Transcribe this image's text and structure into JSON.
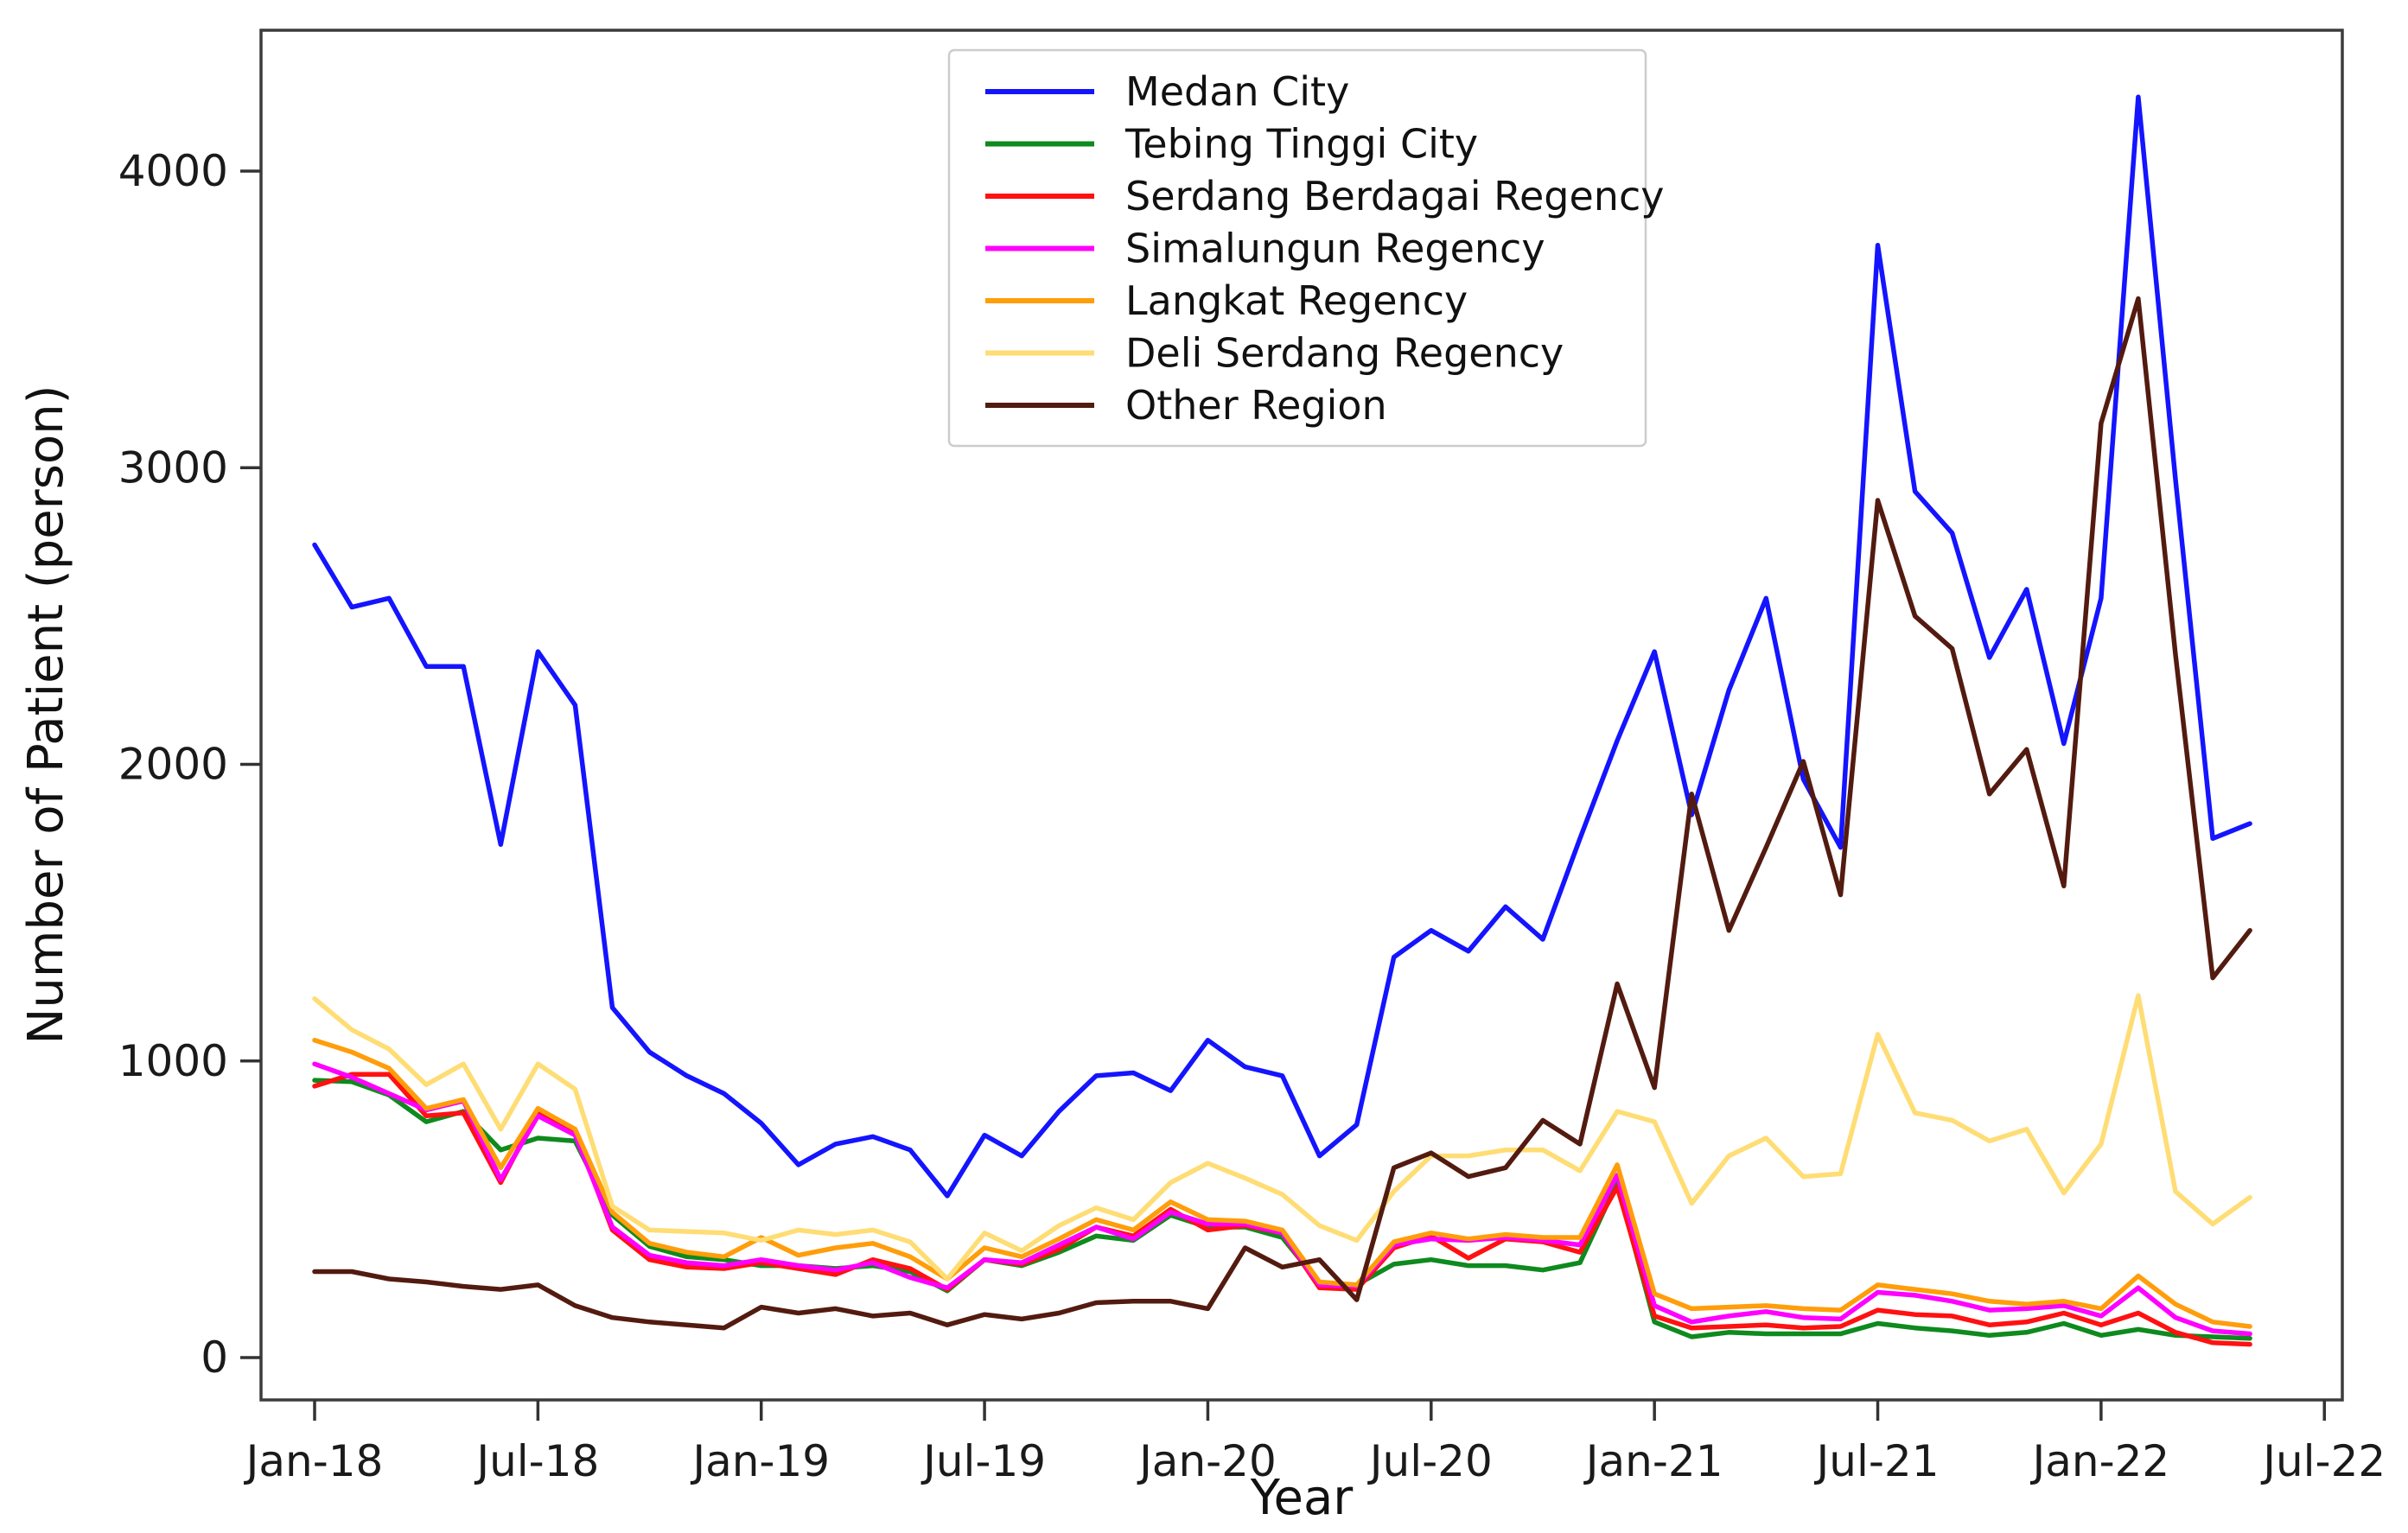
{
  "chart_data": {
    "type": "line",
    "title": "",
    "xlabel": "Year",
    "ylabel": "Number of Patient (person)",
    "grid": false,
    "legend_position": "upper center",
    "x_tick_labels": [
      "Jan-18",
      "Jul-18",
      "Jan-19",
      "Jul-19",
      "Jan-20",
      "Jul-20",
      "Jan-21",
      "Jul-21",
      "Jan-22",
      "Jul-22"
    ],
    "x_tick_month_positions": [
      0,
      6,
      12,
      18,
      24,
      30,
      36,
      42,
      48,
      54
    ],
    "y_ticks": [
      0,
      1000,
      2000,
      3000,
      4000
    ],
    "ylim": [
      -140,
      4475
    ],
    "x": [
      "Jan-18",
      "Feb-18",
      "Mar-18",
      "Apr-18",
      "May-18",
      "Jun-18",
      "Jul-18",
      "Aug-18",
      "Sep-18",
      "Oct-18",
      "Nov-18",
      "Dec-18",
      "Jan-19",
      "Feb-19",
      "Mar-19",
      "Apr-19",
      "May-19",
      "Jun-19",
      "Jul-19",
      "Aug-19",
      "Sep-19",
      "Oct-19",
      "Nov-19",
      "Dec-19",
      "Jan-20",
      "Feb-20",
      "Mar-20",
      "Apr-20",
      "May-20",
      "Jun-20",
      "Jul-20",
      "Aug-20",
      "Sep-20",
      "Oct-20",
      "Nov-20",
      "Dec-20",
      "Jan-21",
      "Feb-21",
      "Mar-21",
      "Apr-21",
      "May-21",
      "Jun-21",
      "Jul-21",
      "Aug-21",
      "Sep-21",
      "Oct-21",
      "Nov-21",
      "Dec-21",
      "Jan-22",
      "Feb-22",
      "Mar-22",
      "Apr-22",
      "May-22"
    ],
    "series": [
      {
        "name": "Medan City",
        "color": "#1414ff",
        "values": [
          2740,
          2530,
          2560,
          2330,
          2330,
          1730,
          2380,
          2200,
          1180,
          1030,
          950,
          890,
          790,
          650,
          720,
          745,
          700,
          545,
          750,
          680,
          830,
          950,
          960,
          900,
          1070,
          980,
          950,
          680,
          785,
          1350,
          1440,
          1370,
          1520,
          1410,
          1750,
          2080,
          2380,
          1830,
          2250,
          2560,
          1950,
          1720,
          3750,
          2920,
          2780,
          2360,
          2590,
          2070,
          2560,
          4250,
          2960,
          1750,
          1800
        ]
      },
      {
        "name": "Tebing Tinggi City",
        "color": "#0e8a1e",
        "values": [
          935,
          930,
          885,
          795,
          830,
          700,
          740,
          730,
          480,
          375,
          340,
          330,
          310,
          310,
          300,
          310,
          290,
          225,
          330,
          310,
          355,
          410,
          395,
          480,
          440,
          440,
          405,
          250,
          245,
          315,
          330,
          310,
          310,
          295,
          320,
          590,
          120,
          70,
          85,
          80,
          80,
          80,
          115,
          100,
          90,
          75,
          85,
          115,
          75,
          95,
          75,
          70,
          65
        ]
      },
      {
        "name": "Serdang Berdagai Regency",
        "color": "#ff1111",
        "values": [
          915,
          955,
          955,
          815,
          825,
          590,
          830,
          760,
          430,
          330,
          305,
          300,
          320,
          300,
          280,
          330,
          300,
          230,
          330,
          315,
          365,
          440,
          410,
          500,
          430,
          445,
          420,
          235,
          230,
          370,
          410,
          335,
          400,
          390,
          355,
          575,
          140,
          100,
          105,
          110,
          100,
          105,
          160,
          145,
          140,
          110,
          120,
          150,
          110,
          150,
          85,
          50,
          45
        ]
      },
      {
        "name": "Simalungun Regency",
        "color": "#ff00ff",
        "values": [
          990,
          945,
          890,
          835,
          865,
          600,
          815,
          750,
          440,
          345,
          320,
          310,
          330,
          310,
          295,
          320,
          270,
          235,
          330,
          320,
          380,
          440,
          400,
          490,
          450,
          450,
          420,
          245,
          240,
          380,
          400,
          395,
          405,
          395,
          380,
          615,
          175,
          120,
          140,
          155,
          135,
          130,
          220,
          210,
          190,
          160,
          165,
          175,
          140,
          235,
          135,
          90,
          80
        ]
      },
      {
        "name": "Langkat Regency",
        "color": "#ff9d0a",
        "values": [
          1070,
          1030,
          975,
          840,
          870,
          640,
          840,
          770,
          490,
          385,
          355,
          340,
          405,
          345,
          370,
          385,
          340,
          265,
          370,
          340,
          400,
          465,
          430,
          525,
          465,
          460,
          430,
          255,
          245,
          390,
          420,
          400,
          415,
          405,
          405,
          650,
          215,
          165,
          170,
          175,
          165,
          160,
          245,
          230,
          215,
          190,
          180,
          190,
          165,
          275,
          180,
          120,
          105
        ]
      },
      {
        "name": "Deli Serdang Regency",
        "color": "#ffdd75",
        "values": [
          1210,
          1105,
          1040,
          920,
          990,
          770,
          990,
          905,
          510,
          430,
          425,
          420,
          395,
          430,
          415,
          430,
          390,
          265,
          420,
          360,
          445,
          505,
          465,
          590,
          655,
          605,
          550,
          445,
          395,
          560,
          680,
          680,
          700,
          700,
          630,
          830,
          795,
          520,
          680,
          740,
          610,
          620,
          1090,
          825,
          800,
          730,
          770,
          555,
          720,
          1220,
          560,
          450,
          540
        ]
      },
      {
        "name": "Other Region",
        "color": "#531b10",
        "values": [
          290,
          290,
          265,
          255,
          240,
          230,
          245,
          175,
          135,
          120,
          110,
          100,
          170,
          150,
          165,
          140,
          150,
          110,
          145,
          130,
          150,
          185,
          190,
          190,
          165,
          370,
          305,
          330,
          195,
          640,
          690,
          610,
          640,
          800,
          720,
          1260,
          910,
          1900,
          1440,
          1720,
          2010,
          1560,
          2890,
          2500,
          2390,
          1900,
          2050,
          1590,
          3150,
          3570,
          2370,
          1280,
          1440
        ]
      }
    ]
  }
}
